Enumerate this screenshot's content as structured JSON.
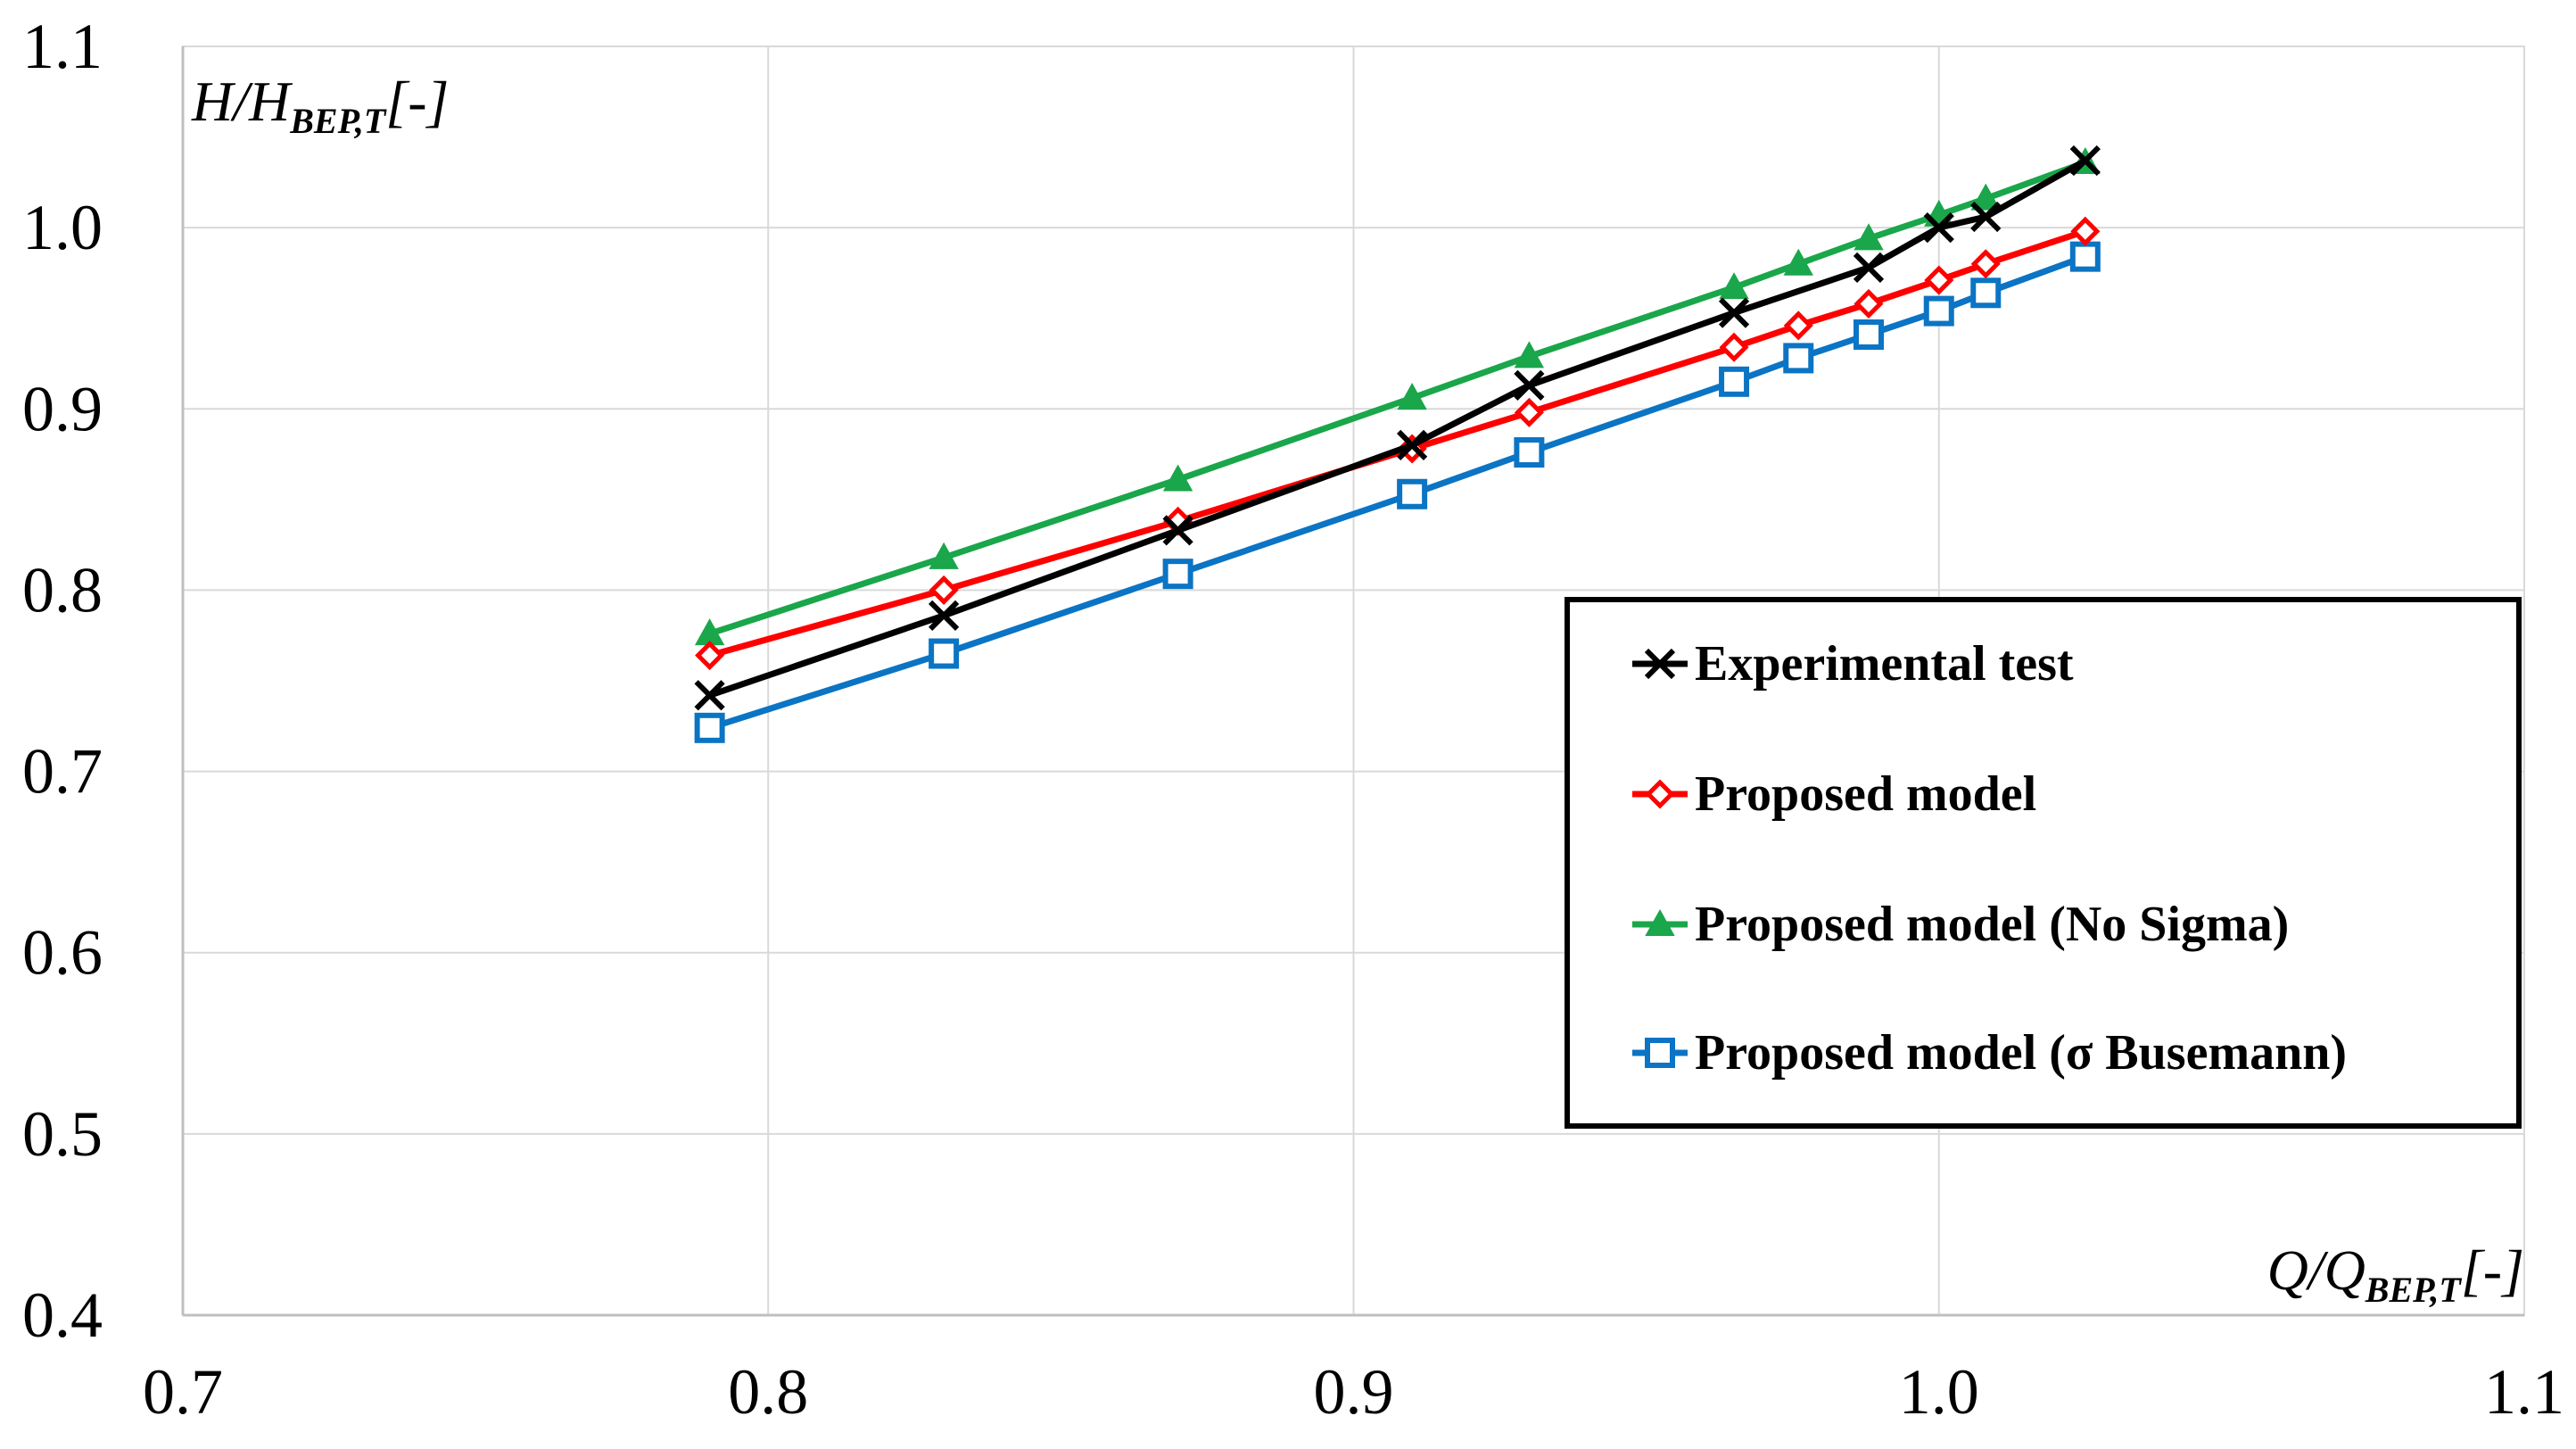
{
  "colors": {
    "experimental": "#000000",
    "proposed": "#ff0000",
    "no_sigma": "#1aa64a",
    "busemann": "#0b74c4",
    "grid": "#d9d9d9"
  },
  "chart_data": {
    "type": "line",
    "title": "",
    "xlabel": {
      "main": "Q/Q",
      "sub": "BEP,T",
      "unit": "[-]"
    },
    "ylabel": {
      "main": "H/H",
      "sub": "BEP,T",
      "unit": "[-]"
    },
    "xlim": [
      0.7,
      1.1
    ],
    "ylim": [
      0.4,
      1.1
    ],
    "x_ticks": [
      "0.7",
      "0.8",
      "0.9",
      "1.0",
      "1.1"
    ],
    "y_ticks": [
      "0.4",
      "0.5",
      "0.6",
      "0.7",
      "0.8",
      "0.9",
      "1.0",
      "1.1"
    ],
    "grid": true,
    "legend_position": "right",
    "series": [
      {
        "name": "Experimental test",
        "marker": "x",
        "color_key": "experimental",
        "x": [
          0.79,
          0.83,
          0.87,
          0.91,
          0.93,
          0.965,
          0.988,
          1.0,
          1.008,
          1.025
        ],
        "y": [
          0.742,
          0.786,
          0.833,
          0.88,
          0.913,
          0.953,
          0.978,
          1.0,
          1.006,
          1.037
        ]
      },
      {
        "name": "Proposed model",
        "marker": "diamond",
        "color_key": "proposed",
        "x": [
          0.79,
          0.83,
          0.87,
          0.91,
          0.93,
          0.965,
          0.976,
          0.988,
          1.0,
          1.008,
          1.025
        ],
        "y": [
          0.764,
          0.8,
          0.838,
          0.878,
          0.898,
          0.934,
          0.946,
          0.958,
          0.971,
          0.98,
          0.998
        ]
      },
      {
        "name": "Proposed model (No Sigma)",
        "marker": "triangle",
        "color_key": "no_sigma",
        "x": [
          0.79,
          0.83,
          0.87,
          0.91,
          0.93,
          0.965,
          0.976,
          0.988,
          1.0,
          1.008,
          1.025
        ],
        "y": [
          0.776,
          0.818,
          0.861,
          0.906,
          0.929,
          0.967,
          0.98,
          0.994,
          1.007,
          1.016,
          1.036
        ]
      },
      {
        "name": "Proposed model (σ Busemann)",
        "marker": "square",
        "color_key": "busemann",
        "x": [
          0.79,
          0.83,
          0.87,
          0.91,
          0.93,
          0.965,
          0.976,
          0.988,
          1.0,
          1.008,
          1.025
        ],
        "y": [
          0.724,
          0.765,
          0.809,
          0.853,
          0.876,
          0.915,
          0.928,
          0.941,
          0.954,
          0.964,
          0.984
        ]
      }
    ]
  }
}
